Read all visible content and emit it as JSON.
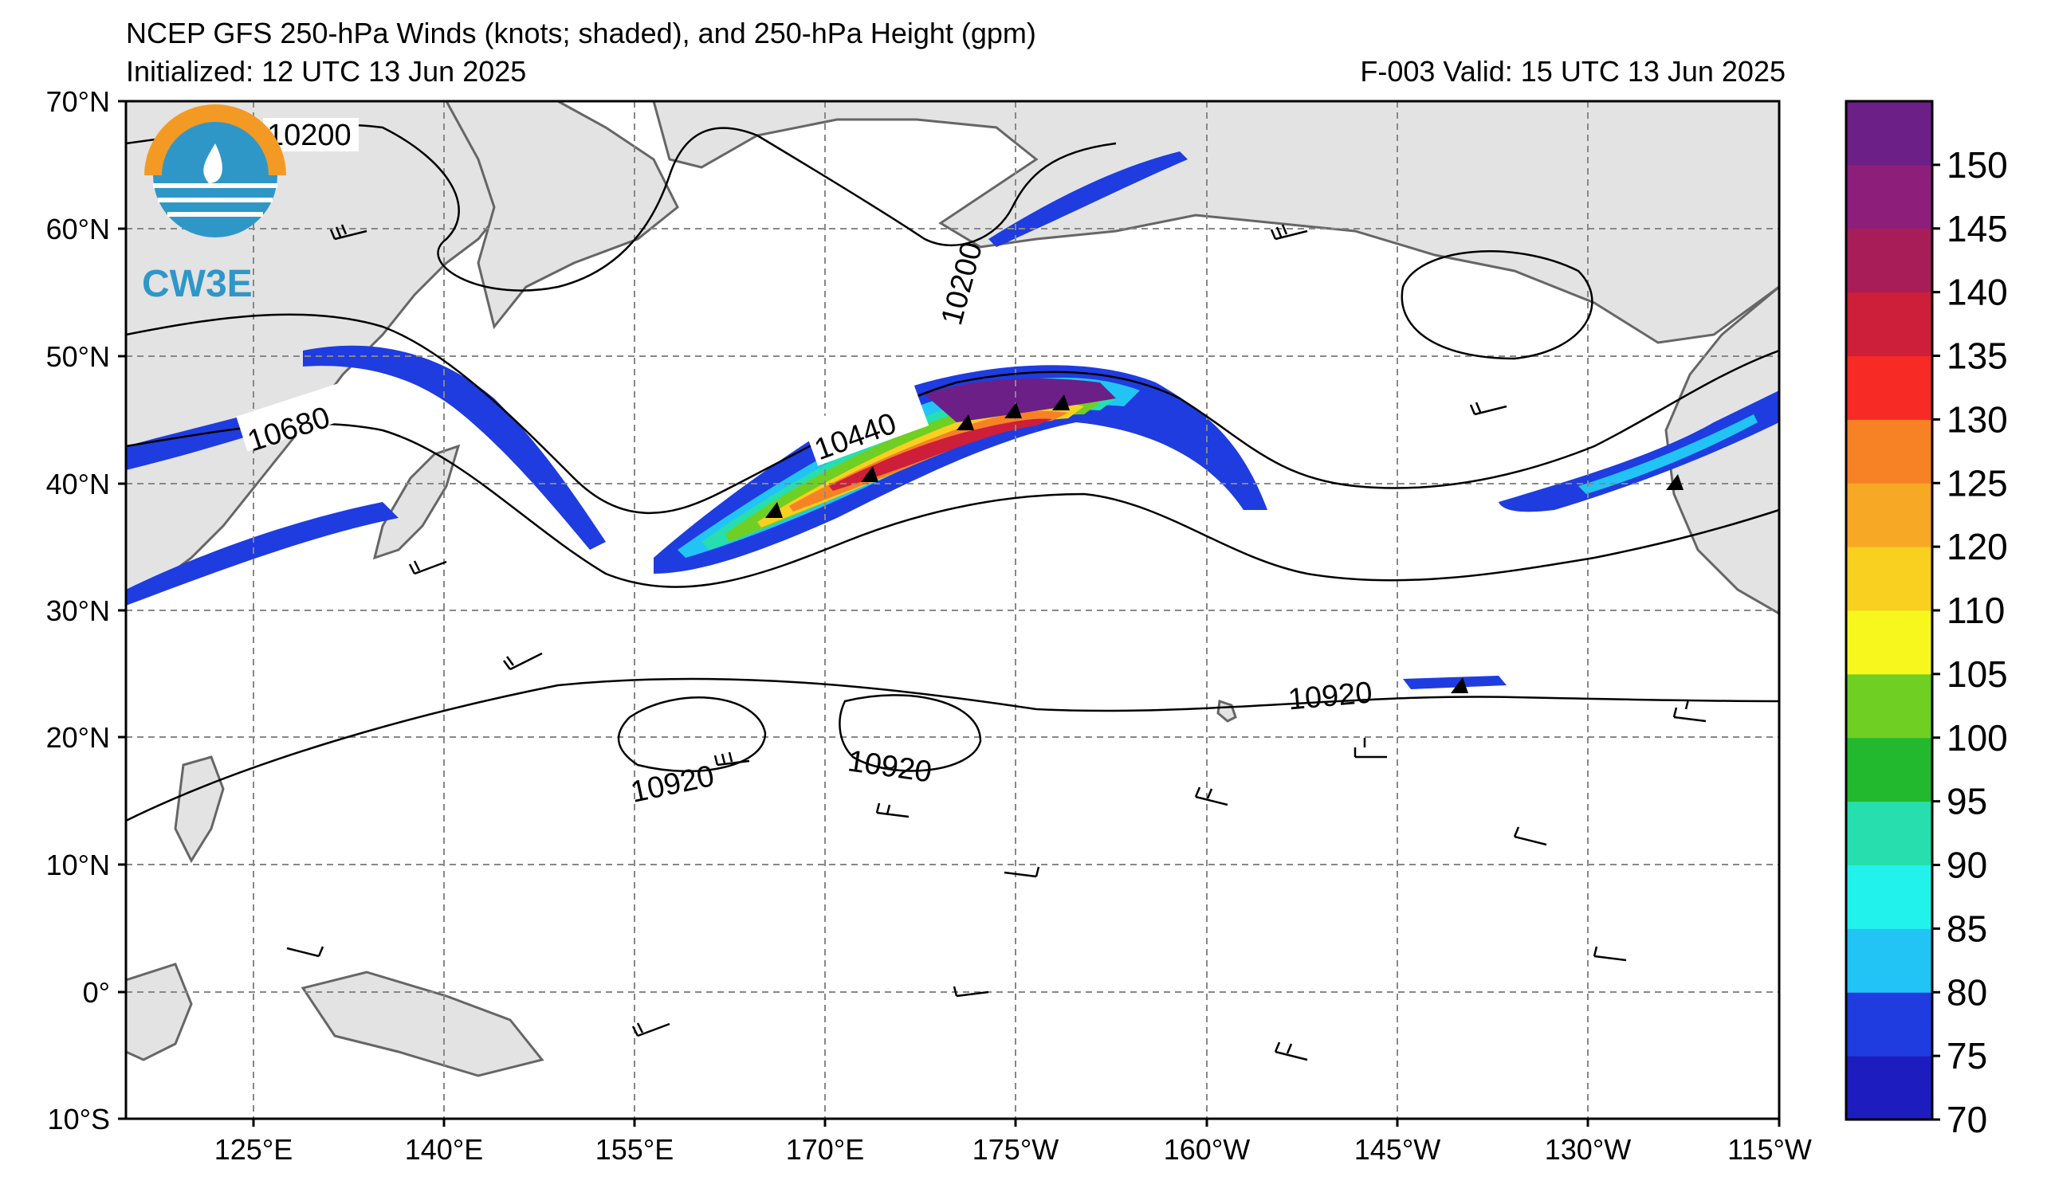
{
  "header": {
    "title": "NCEP GFS 250-hPa Winds (knots; shaded), and 250-hPa Height (gpm)",
    "initialized": "Initialized: 12 UTC 13 Jun 2025",
    "valid": "F-003  Valid: 15 UTC 13 Jun 2025"
  },
  "logo": {
    "text": "CW3E"
  },
  "map": {
    "lat_labels": [
      "70°N",
      "60°N",
      "50°N",
      "40°N",
      "30°N",
      "20°N",
      "10°N",
      "0°",
      "10°S"
    ],
    "lon_labels": [
      "125°E",
      "140°E",
      "155°E",
      "170°E",
      "175°W",
      "160°W",
      "145°W",
      "130°W",
      "115°W"
    ],
    "contour_labels": [
      "10200",
      "10200",
      "10680",
      "10440",
      "10920",
      "10920",
      "10920"
    ]
  },
  "colorbar": {
    "levels": [
      {
        "value": "70",
        "color": "#1d1dbf"
      },
      {
        "value": "75",
        "color": "#1e3ce0"
      },
      {
        "value": "80",
        "color": "#22c4f5"
      },
      {
        "value": "85",
        "color": "#22f2ec"
      },
      {
        "value": "90",
        "color": "#27dfae"
      },
      {
        "value": "95",
        "color": "#22b92f"
      },
      {
        "value": "100",
        "color": "#6fcf22"
      },
      {
        "value": "105",
        "color": "#f7f71e"
      },
      {
        "value": "110",
        "color": "#f9d020"
      },
      {
        "value": "120",
        "color": "#f7a925"
      },
      {
        "value": "125",
        "color": "#f78225"
      },
      {
        "value": "130",
        "color": "#f82a26"
      },
      {
        "value": "135",
        "color": "#cd1e3a"
      },
      {
        "value": "140",
        "color": "#a81d58"
      },
      {
        "value": "145",
        "color": "#8d1f7a"
      },
      {
        "value": "150",
        "color": "#6c1f86"
      }
    ]
  }
}
